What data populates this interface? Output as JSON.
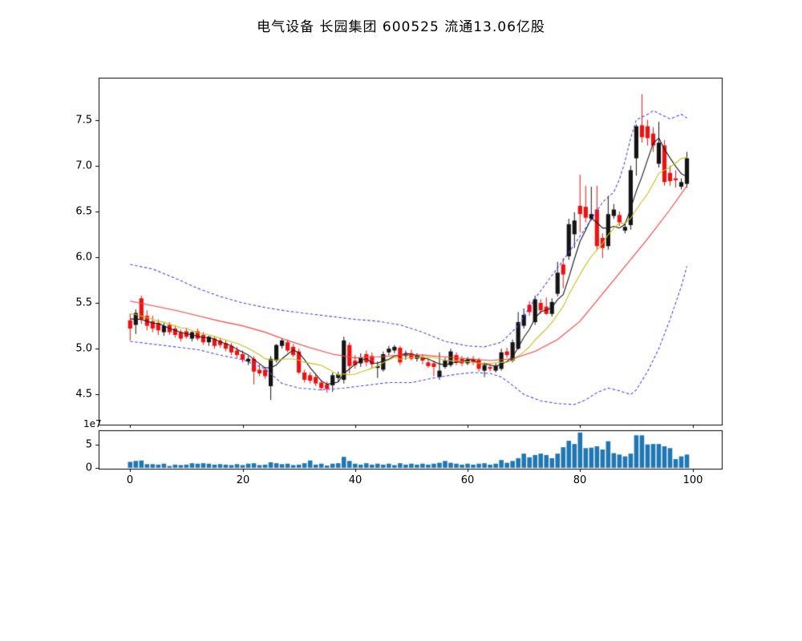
{
  "header": {
    "title": "电气设备 长园集团 600525 流通13.06亿股"
  },
  "colors": {
    "background": "#ffffff",
    "axis": "#000000",
    "candle_up": "#141414",
    "candle_down": "#ee1111",
    "ma_fast": "#1a1a1a",
    "ma_mid": "#c3c31c",
    "ma_slow": "#ff4040",
    "band": "#4646ff",
    "volume_bar": "#1f77b4"
  },
  "chart_data": [
    {
      "type": "candlestick",
      "title": "",
      "xlabel": "",
      "ylabel": "",
      "grid": false,
      "legend": "none",
      "xlim": [
        -5.6,
        105.2
      ],
      "ylim": [
        4.17,
        7.96
      ],
      "yticks": {
        "values": [
          4.5,
          5.0,
          5.5,
          6.0,
          6.5,
          7.0,
          7.5
        ],
        "labels": [
          "4.5",
          "5.0",
          "5.5",
          "6.0",
          "6.5",
          "7.0",
          "7.5"
        ]
      },
      "xticks": {
        "values": [
          0,
          20,
          40,
          60,
          80,
          100
        ],
        "labels_shown": false
      },
      "color_convention": "black body = up day (close>=open), red body = down day",
      "ohlc": [
        [
          5.31,
          5.38,
          5.09,
          5.22
        ],
        [
          5.26,
          5.43,
          5.16,
          5.39
        ],
        [
          5.55,
          5.58,
          5.27,
          5.32
        ],
        [
          5.36,
          5.42,
          5.2,
          5.25
        ],
        [
          5.3,
          5.36,
          5.18,
          5.22
        ],
        [
          5.28,
          5.32,
          5.15,
          5.2
        ],
        [
          5.18,
          5.28,
          5.14,
          5.25
        ],
        [
          5.26,
          5.29,
          5.15,
          5.18
        ],
        [
          5.22,
          5.25,
          5.12,
          5.15
        ],
        [
          5.18,
          5.21,
          5.08,
          5.11
        ],
        [
          5.19,
          5.23,
          5.11,
          5.13
        ],
        [
          5.11,
          5.19,
          5.08,
          5.18
        ],
        [
          5.19,
          5.22,
          5.09,
          5.11
        ],
        [
          5.15,
          5.18,
          5.04,
          5.07
        ],
        [
          5.07,
          5.14,
          5.03,
          5.13
        ],
        [
          5.11,
          5.13,
          5.0,
          5.03
        ],
        [
          5.09,
          5.12,
          5.01,
          5.04
        ],
        [
          5.06,
          5.09,
          4.97,
          5.0
        ],
        [
          5.03,
          5.06,
          4.93,
          4.96
        ],
        [
          4.98,
          5.02,
          4.9,
          4.93
        ],
        [
          4.94,
          4.98,
          4.85,
          4.88
        ],
        [
          4.86,
          4.92,
          4.82,
          4.89
        ],
        [
          4.89,
          4.92,
          4.61,
          4.75
        ],
        [
          4.77,
          4.83,
          4.7,
          4.73
        ],
        [
          4.77,
          4.8,
          4.67,
          4.7
        ],
        [
          4.59,
          4.92,
          4.44,
          4.89
        ],
        [
          4.87,
          5.05,
          4.85,
          5.04
        ],
        [
          5.03,
          5.11,
          5.0,
          5.09
        ],
        [
          5.07,
          5.1,
          4.96,
          4.98
        ],
        [
          5.02,
          5.05,
          4.91,
          4.93
        ],
        [
          4.97,
          5.0,
          4.72,
          4.74
        ],
        [
          4.74,
          4.77,
          4.63,
          4.66
        ],
        [
          4.71,
          4.74,
          4.62,
          4.65
        ],
        [
          4.69,
          4.72,
          4.59,
          4.62
        ],
        [
          4.63,
          4.66,
          4.54,
          4.57
        ],
        [
          4.61,
          4.64,
          4.52,
          4.56
        ],
        [
          4.6,
          4.74,
          4.53,
          4.71
        ],
        [
          4.68,
          4.75,
          4.64,
          4.72
        ],
        [
          4.66,
          5.13,
          4.62,
          5.09
        ],
        [
          5.04,
          5.07,
          4.73,
          4.81
        ],
        [
          4.87,
          4.93,
          4.78,
          4.82
        ],
        [
          4.84,
          4.95,
          4.8,
          4.9
        ],
        [
          4.94,
          4.98,
          4.81,
          4.85
        ],
        [
          4.92,
          4.96,
          4.79,
          4.83
        ],
        [
          4.79,
          4.86,
          4.68,
          4.81
        ],
        [
          4.77,
          4.97,
          4.75,
          4.94
        ],
        [
          4.96,
          5.03,
          4.93,
          5.0
        ],
        [
          4.98,
          5.04,
          4.95,
          5.02
        ],
        [
          5.01,
          5.03,
          4.82,
          4.85
        ],
        [
          4.92,
          4.98,
          4.88,
          4.94
        ],
        [
          4.95,
          4.99,
          4.87,
          4.89
        ],
        [
          4.89,
          4.95,
          4.86,
          4.93
        ],
        [
          4.91,
          4.94,
          4.83,
          4.87
        ],
        [
          4.85,
          4.89,
          4.79,
          4.81
        ],
        [
          4.84,
          4.87,
          4.7,
          4.8
        ],
        [
          4.69,
          4.96,
          4.66,
          4.76
        ],
        [
          4.8,
          4.9,
          4.78,
          4.87
        ],
        [
          4.82,
          5.0,
          4.8,
          4.97
        ],
        [
          4.93,
          4.96,
          4.82,
          4.85
        ],
        [
          4.89,
          4.92,
          4.81,
          4.84
        ],
        [
          4.84,
          4.91,
          4.82,
          4.88
        ],
        [
          4.89,
          4.92,
          4.82,
          4.85
        ],
        [
          4.88,
          4.9,
          4.75,
          4.78
        ],
        [
          4.76,
          4.85,
          4.69,
          4.82
        ],
        [
          4.8,
          4.83,
          4.75,
          4.78
        ],
        [
          4.76,
          4.84,
          4.74,
          4.81
        ],
        [
          4.78,
          5.0,
          4.76,
          4.96
        ],
        [
          4.97,
          5.01,
          4.9,
          4.93
        ],
        [
          4.87,
          5.1,
          4.85,
          5.07
        ],
        [
          5.0,
          5.4,
          4.99,
          5.29
        ],
        [
          5.25,
          5.44,
          5.22,
          5.37
        ],
        [
          5.48,
          5.52,
          5.36,
          5.4
        ],
        [
          5.29,
          5.58,
          5.26,
          5.54
        ],
        [
          5.5,
          5.54,
          5.38,
          5.42
        ],
        [
          5.46,
          5.56,
          5.37,
          5.38
        ],
        [
          5.38,
          5.55,
          5.35,
          5.51
        ],
        [
          5.6,
          5.95,
          5.57,
          5.83
        ],
        [
          5.92,
          5.99,
          5.66,
          5.81
        ],
        [
          6.01,
          6.42,
          5.97,
          6.36
        ],
        [
          6.25,
          6.49,
          6.1,
          6.4
        ],
        [
          6.56,
          6.9,
          6.27,
          6.47
        ],
        [
          6.55,
          6.78,
          6.38,
          6.43
        ],
        [
          6.42,
          6.77,
          6.4,
          6.47
        ],
        [
          6.52,
          6.78,
          6.08,
          6.12
        ],
        [
          6.21,
          6.26,
          5.99,
          6.1
        ],
        [
          6.12,
          6.67,
          6.08,
          6.47
        ],
        [
          6.45,
          6.58,
          6.42,
          6.52
        ],
        [
          6.46,
          6.5,
          6.34,
          6.38
        ],
        [
          6.29,
          6.38,
          6.26,
          6.33
        ],
        [
          6.35,
          7.0,
          6.3,
          6.95
        ],
        [
          7.08,
          7.45,
          6.89,
          7.43
        ],
        [
          7.44,
          7.78,
          7.25,
          7.31
        ],
        [
          7.43,
          7.5,
          7.22,
          7.3
        ],
        [
          7.35,
          7.42,
          7.15,
          7.22
        ],
        [
          7.02,
          7.48,
          6.98,
          7.25
        ],
        [
          7.22,
          7.28,
          6.78,
          6.82
        ],
        [
          6.92,
          7.0,
          6.78,
          6.83
        ],
        [
          6.86,
          6.95,
          6.76,
          6.84
        ],
        [
          6.77,
          6.86,
          6.74,
          6.82
        ],
        [
          6.8,
          7.15,
          6.76,
          7.08
        ]
      ],
      "overlays": {
        "ma_fast_window": 5,
        "ma_mid_window": 10,
        "ma_seed_closes": [
          5.5,
          5.48,
          5.46,
          5.44,
          5.42,
          5.4,
          5.38,
          5.36,
          5.34,
          5.32
        ],
        "ma_slow_points": [
          [
            0,
            5.52
          ],
          [
            4,
            5.47
          ],
          [
            8,
            5.42
          ],
          [
            12,
            5.36
          ],
          [
            16,
            5.3
          ],
          [
            20,
            5.25
          ],
          [
            24,
            5.18
          ],
          [
            28,
            5.09
          ],
          [
            32,
            5.01
          ],
          [
            36,
            4.94
          ],
          [
            40,
            4.9
          ],
          [
            44,
            4.91
          ],
          [
            48,
            4.93
          ],
          [
            52,
            4.93
          ],
          [
            56,
            4.91
          ],
          [
            60,
            4.89
          ],
          [
            64,
            4.87
          ],
          [
            68,
            4.89
          ],
          [
            72,
            4.97
          ],
          [
            76,
            5.1
          ],
          [
            80,
            5.3
          ],
          [
            84,
            5.6
          ],
          [
            88,
            5.9
          ],
          [
            92,
            6.2
          ],
          [
            96,
            6.52
          ],
          [
            99,
            6.78
          ]
        ],
        "boll_upper_points": [
          [
            0,
            5.92
          ],
          [
            4,
            5.87
          ],
          [
            8,
            5.77
          ],
          [
            12,
            5.66
          ],
          [
            16,
            5.57
          ],
          [
            20,
            5.5
          ],
          [
            24,
            5.45
          ],
          [
            28,
            5.41
          ],
          [
            32,
            5.38
          ],
          [
            36,
            5.35
          ],
          [
            40,
            5.32
          ],
          [
            44,
            5.3
          ],
          [
            48,
            5.26
          ],
          [
            52,
            5.18
          ],
          [
            56,
            5.08
          ],
          [
            60,
            5.03
          ],
          [
            63,
            5.02
          ],
          [
            66,
            5.07
          ],
          [
            69,
            5.25
          ],
          [
            72,
            5.55
          ],
          [
            75,
            5.8
          ],
          [
            78,
            6.05
          ],
          [
            81,
            6.32
          ],
          [
            84,
            6.6
          ],
          [
            86,
            6.71
          ],
          [
            87,
            6.85
          ],
          [
            88,
            7.05
          ],
          [
            89,
            7.3
          ],
          [
            90,
            7.5
          ],
          [
            92,
            7.56
          ],
          [
            93,
            7.6
          ],
          [
            95,
            7.54
          ],
          [
            96,
            7.51
          ],
          [
            98,
            7.56
          ],
          [
            99,
            7.52
          ]
        ],
        "boll_lower_points": [
          [
            0,
            5.08
          ],
          [
            4,
            5.05
          ],
          [
            8,
            5.02
          ],
          [
            12,
            4.99
          ],
          [
            16,
            4.93
          ],
          [
            20,
            4.88
          ],
          [
            24,
            4.78
          ],
          [
            27,
            4.62
          ],
          [
            30,
            4.57
          ],
          [
            34,
            4.55
          ],
          [
            38,
            4.57
          ],
          [
            42,
            4.6
          ],
          [
            46,
            4.63
          ],
          [
            50,
            4.63
          ],
          [
            54,
            4.68
          ],
          [
            58,
            4.72
          ],
          [
            61,
            4.74
          ],
          [
            64,
            4.73
          ],
          [
            66,
            4.69
          ],
          [
            68,
            4.6
          ],
          [
            70,
            4.5
          ],
          [
            73,
            4.43
          ],
          [
            76,
            4.4
          ],
          [
            79,
            4.39
          ],
          [
            81,
            4.44
          ],
          [
            83,
            4.52
          ],
          [
            85,
            4.57
          ],
          [
            87,
            4.54
          ],
          [
            89,
            4.5
          ],
          [
            90,
            4.55
          ],
          [
            92,
            4.75
          ],
          [
            94,
            5.0
          ],
          [
            96,
            5.32
          ],
          [
            98,
            5.68
          ],
          [
            99,
            5.9
          ]
        ]
      }
    },
    {
      "type": "bar",
      "name": "volume",
      "scale_label": "1e7",
      "unit": 10000000,
      "grid": false,
      "xlim": [
        -5.6,
        105.2
      ],
      "ylim": [
        -0.2,
        8.2
      ],
      "yticks": {
        "values": [
          0,
          5
        ],
        "labels": [
          "0",
          "5"
        ]
      },
      "xticks": {
        "values": [
          0,
          20,
          40,
          60,
          80,
          100
        ],
        "labels": [
          "0",
          "20",
          "40",
          "60",
          "80",
          "100"
        ]
      },
      "values": [
        1.3,
        1.5,
        1.6,
        0.8,
        0.8,
        0.7,
        0.9,
        0.4,
        0.7,
        0.6,
        0.7,
        1.0,
        0.9,
        1.0,
        0.9,
        0.7,
        0.8,
        0.7,
        0.6,
        0.8,
        0.6,
        0.9,
        1.0,
        0.6,
        0.7,
        1.2,
        1.0,
        0.8,
        0.9,
        0.6,
        0.7,
        1.0,
        1.6,
        0.7,
        0.9,
        0.5,
        0.9,
        1.0,
        2.4,
        1.5,
        0.9,
        0.7,
        1.0,
        0.7,
        0.9,
        0.7,
        0.9,
        0.6,
        1.0,
        0.7,
        0.9,
        0.7,
        0.9,
        0.7,
        0.9,
        1.1,
        1.5,
        1.1,
        0.9,
        0.7,
        0.9,
        0.7,
        0.9,
        1.0,
        0.7,
        0.9,
        1.7,
        1.1,
        1.5,
        2.1,
        3.1,
        2.3,
        2.8,
        3.1,
        2.8,
        2.1,
        3.1,
        4.5,
        5.9,
        5.2,
        7.7,
        4.3,
        4.4,
        4.7,
        4.0,
        5.8,
        3.2,
        2.9,
        2.5,
        3.1,
        7.1,
        7.1,
        5.1,
        5.2,
        5.2,
        4.7,
        4.3,
        1.9,
        2.5,
        2.9
      ]
    }
  ]
}
